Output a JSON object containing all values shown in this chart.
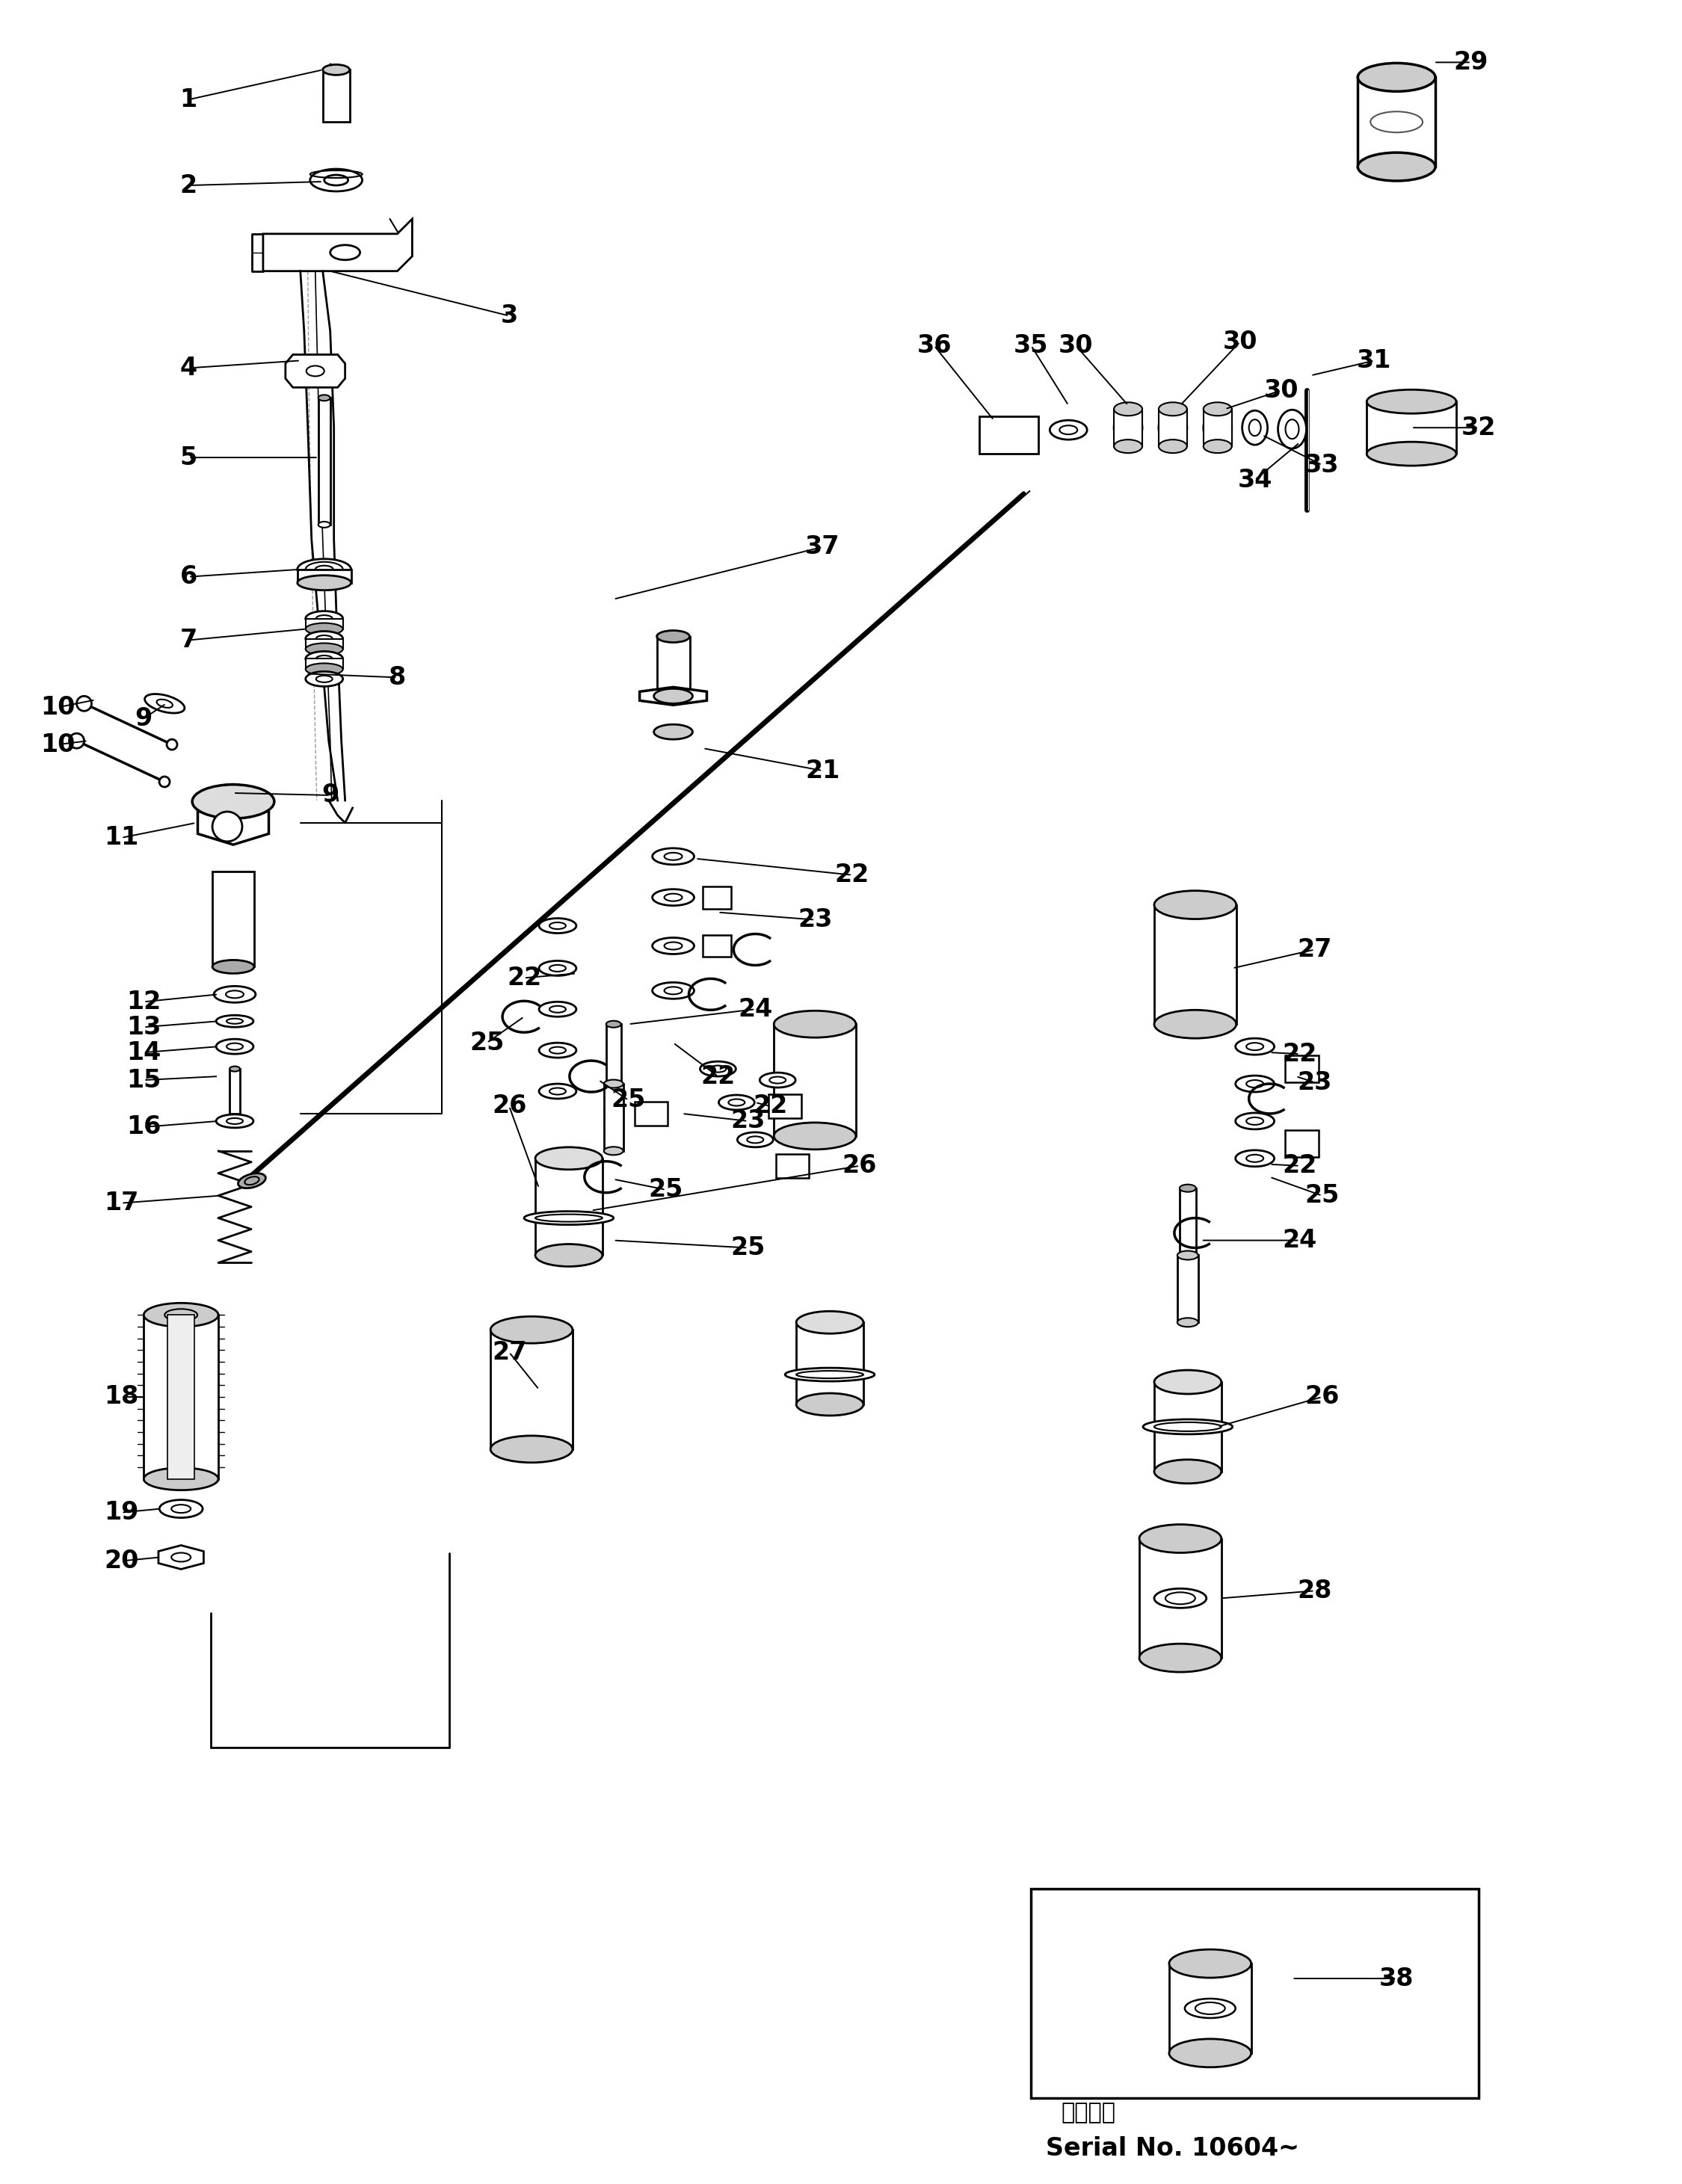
{
  "bg_color": "#ffffff",
  "line_color": "#000000",
  "figure_width": 22.5,
  "figure_height": 29.22,
  "serial_text_line1": "適用号機",
  "serial_text_line2": "Serial No. 10604~"
}
